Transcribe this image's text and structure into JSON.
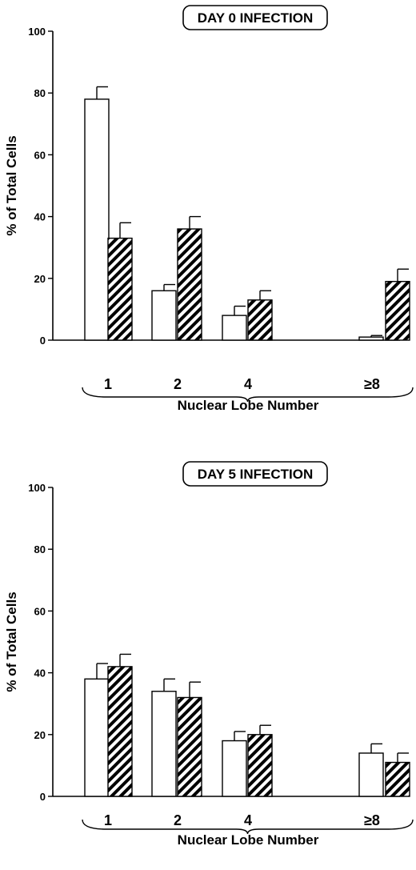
{
  "chart_data": [
    {
      "type": "bar",
      "title": "DAY 0 INFECTION",
      "xlabel": "Nuclear Lobe Number",
      "ylabel": "% of Total Cells",
      "categories": [
        "1",
        "2",
        "4",
        "≥8"
      ],
      "ylim": [
        0,
        100
      ],
      "yticks": [
        0,
        20,
        40,
        60,
        80,
        100
      ],
      "grid": false,
      "series": [
        {
          "fill": "open",
          "values": [
            78,
            16,
            8,
            1
          ],
          "errors": [
            4,
            2,
            3,
            0.5
          ]
        },
        {
          "fill": "hatched",
          "values": [
            33,
            36,
            13,
            19
          ],
          "errors": [
            5,
            4,
            3,
            4
          ]
        }
      ]
    },
    {
      "type": "bar",
      "title": "DAY 5 INFECTION",
      "xlabel": "Nuclear Lobe Number",
      "ylabel": "% of Total Cells",
      "categories": [
        "1",
        "2",
        "4",
        "≥8"
      ],
      "ylim": [
        0,
        100
      ],
      "yticks": [
        0,
        20,
        40,
        60,
        80,
        100
      ],
      "grid": false,
      "series": [
        {
          "fill": "open",
          "values": [
            38,
            34,
            18,
            14
          ],
          "errors": [
            5,
            4,
            3,
            3
          ]
        },
        {
          "fill": "hatched",
          "values": [
            42,
            32,
            20,
            11
          ],
          "errors": [
            4,
            5,
            3,
            3
          ]
        }
      ]
    }
  ]
}
